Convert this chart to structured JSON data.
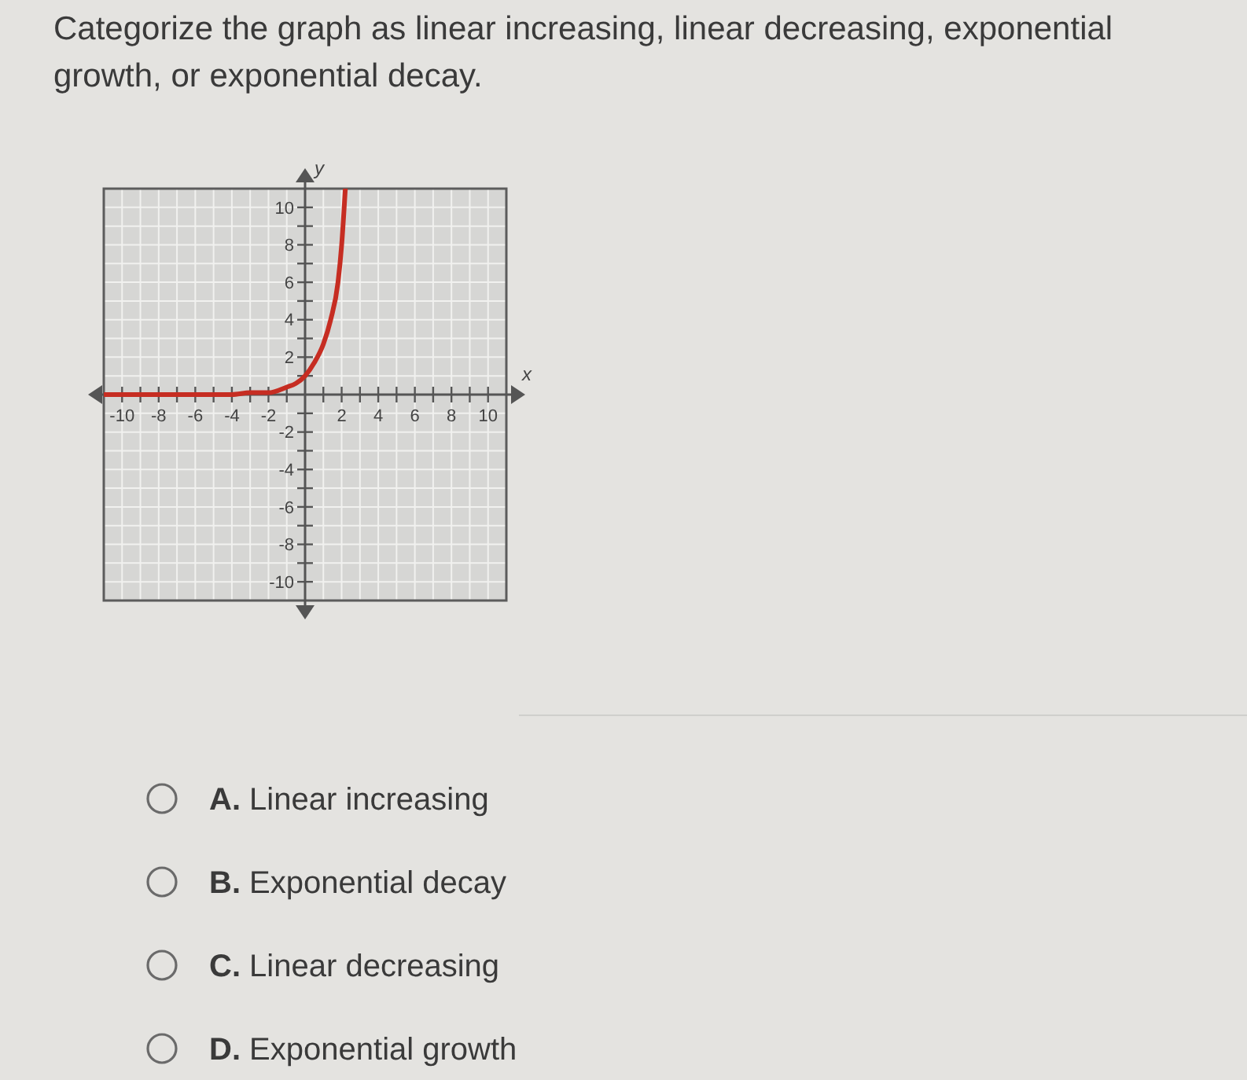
{
  "chart_data": {
    "type": "line",
    "title": "Categorize the graph as linear increasing, linear decreasing, exponential growth, or exponential decay.",
    "xlabel": "x",
    "ylabel": "y",
    "x": [
      -11,
      -4,
      -3,
      -2,
      -1,
      -0.5,
      0,
      0.5,
      1,
      1.4,
      1.8,
      2,
      2.2
    ],
    "series": [
      {
        "color": "#c62d22",
        "values": [
          0,
          0,
          0.1,
          0.1,
          0.4,
          0.6,
          1,
          1.7,
          2.7,
          4,
          6,
          8,
          11
        ]
      }
    ],
    "xlim": [
      -11,
      11
    ],
    "ylim": [
      -11,
      11
    ],
    "xticks": [
      -10,
      {
        "value": -9,
        "label": null
      },
      -8,
      {
        "value": -7,
        "label": null
      },
      -6,
      {
        "value": -5,
        "label": null
      },
      -4,
      {
        "value": -3,
        "label": null
      },
      -2,
      {
        "value": -1,
        "label": null
      },
      {
        "value": 1,
        "label": null
      },
      2,
      {
        "value": 3,
        "label": null
      },
      4,
      {
        "value": 5,
        "label": null
      },
      6,
      {
        "value": 7,
        "label": null
      },
      8,
      {
        "value": 9,
        "label": null
      },
      10
    ],
    "yticks": [
      -10,
      {
        "value": -9,
        "label": null
      },
      -8,
      {
        "value": -7,
        "label": null
      },
      -6,
      {
        "value": -5,
        "label": null
      },
      -4,
      {
        "value": -3,
        "label": null
      },
      -2,
      {
        "value": -1,
        "label": null
      },
      {
        "value": 1,
        "label": null
      },
      2,
      {
        "value": 3,
        "label": null
      },
      4,
      {
        "value": 5,
        "label": null
      },
      6,
      {
        "value": 7,
        "label": null
      },
      8,
      {
        "value": 9,
        "label": null
      },
      10
    ],
    "grid": true,
    "marker": "none",
    "line_style": "solid",
    "annotations": [
      "A. Linear increasing",
      "B. Exponential decay",
      "C. Linear decreasing",
      "D. Exponential growth"
    ]
  }
}
